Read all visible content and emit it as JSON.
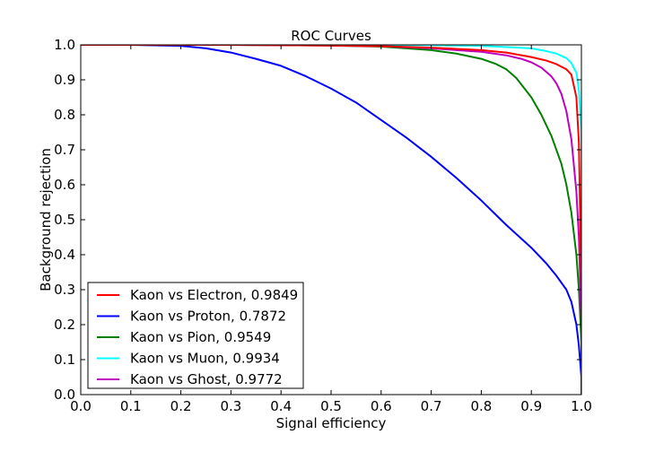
{
  "chart_data": {
    "type": "line",
    "title": "ROC Curves",
    "xlabel": "Signal efficiency",
    "ylabel": "Background rejection",
    "xlim": [
      0.0,
      1.0
    ],
    "ylim": [
      0.0,
      1.0
    ],
    "xticks": [
      "0.0",
      "0.1",
      "0.2",
      "0.3",
      "0.4",
      "0.5",
      "0.6",
      "0.7",
      "0.8",
      "0.9",
      "1.0"
    ],
    "yticks": [
      "0.0",
      "0.1",
      "0.2",
      "0.3",
      "0.4",
      "0.5",
      "0.6",
      "0.7",
      "0.8",
      "0.9",
      "1.0"
    ],
    "grid": false,
    "legend_position": "lower-left",
    "series": [
      {
        "name": "Kaon vs Electron, 0.9849",
        "color": "#ff0000",
        "x": [
          0.0,
          0.3,
          0.5,
          0.6,
          0.7,
          0.8,
          0.85,
          0.9,
          0.93,
          0.95,
          0.97,
          0.98,
          0.99,
          0.995,
          1.0,
          1.0
        ],
        "y": [
          1.0,
          1.0,
          0.998,
          0.996,
          0.992,
          0.985,
          0.978,
          0.965,
          0.955,
          0.945,
          0.93,
          0.915,
          0.85,
          0.72,
          0.3,
          0.0
        ]
      },
      {
        "name": "Kaon vs Proton, 0.7872",
        "color": "#0000ff",
        "x": [
          0.0,
          0.1,
          0.2,
          0.25,
          0.3,
          0.35,
          0.4,
          0.45,
          0.5,
          0.55,
          0.6,
          0.65,
          0.7,
          0.75,
          0.8,
          0.85,
          0.9,
          0.93,
          0.95,
          0.97,
          0.98,
          0.99,
          0.995,
          1.0,
          1.0
        ],
        "y": [
          1.0,
          1.0,
          0.997,
          0.99,
          0.978,
          0.96,
          0.94,
          0.91,
          0.875,
          0.835,
          0.785,
          0.735,
          0.68,
          0.62,
          0.555,
          0.485,
          0.42,
          0.375,
          0.34,
          0.3,
          0.265,
          0.2,
          0.14,
          0.05,
          0.0
        ]
      },
      {
        "name": "Kaon vs Pion, 0.9549",
        "color": "#008000",
        "x": [
          0.0,
          0.3,
          0.5,
          0.6,
          0.65,
          0.7,
          0.75,
          0.8,
          0.83,
          0.85,
          0.87,
          0.9,
          0.92,
          0.94,
          0.96,
          0.97,
          0.98,
          0.99,
          0.995,
          1.0,
          1.0
        ],
        "y": [
          1.0,
          1.0,
          0.998,
          0.995,
          0.99,
          0.985,
          0.975,
          0.96,
          0.945,
          0.93,
          0.905,
          0.85,
          0.8,
          0.74,
          0.66,
          0.6,
          0.52,
          0.4,
          0.3,
          0.15,
          0.0
        ]
      },
      {
        "name": "Kaon vs Muon, 0.9934",
        "color": "#00ffff",
        "x": [
          0.0,
          0.5,
          0.7,
          0.8,
          0.9,
          0.93,
          0.95,
          0.97,
          0.98,
          0.99,
          0.995,
          1.0,
          1.0
        ],
        "y": [
          1.0,
          1.0,
          0.999,
          0.997,
          0.99,
          0.982,
          0.975,
          0.962,
          0.948,
          0.92,
          0.87,
          0.75,
          0.0
        ]
      },
      {
        "name": "Kaon vs Ghost, 0.9772",
        "color": "#bf00bf",
        "x": [
          0.0,
          0.3,
          0.5,
          0.6,
          0.7,
          0.8,
          0.85,
          0.88,
          0.9,
          0.92,
          0.94,
          0.95,
          0.96,
          0.97,
          0.98,
          0.99,
          0.995,
          1.0,
          1.0
        ],
        "y": [
          1.0,
          1.0,
          0.998,
          0.996,
          0.99,
          0.98,
          0.97,
          0.96,
          0.95,
          0.935,
          0.91,
          0.89,
          0.86,
          0.81,
          0.73,
          0.58,
          0.45,
          0.2,
          0.0
        ]
      }
    ]
  }
}
